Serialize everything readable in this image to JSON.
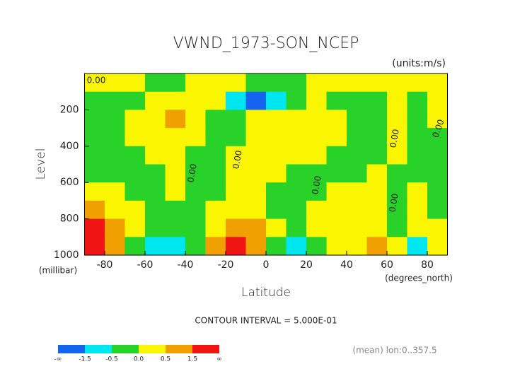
{
  "chart_data": {
    "type": "contour",
    "title": "VWND_1973-SON_NCEP",
    "units": "(units:m/s)",
    "y_label": "Level",
    "y_unit": "(millibar)",
    "x_label": "Latitude",
    "x_unit": "(degrees_north)",
    "contour_interval": "CONTOUR INTERVAL = 5.000E-01",
    "contour_label": "0.00",
    "footnote": "(mean) lon:0..357.5",
    "xlim": [
      -90,
      90
    ],
    "xticks": [
      -80,
      -60,
      -40,
      -20,
      0,
      20,
      40,
      60,
      80
    ],
    "ylim": [
      1000,
      0
    ],
    "yticks": [
      200,
      400,
      600,
      800,
      1000
    ],
    "x": [
      -85,
      -75,
      -65,
      -55,
      -45,
      -35,
      -25,
      -15,
      -5,
      5,
      15,
      25,
      35,
      45,
      55,
      65,
      75,
      85
    ],
    "levels": [
      50,
      150,
      250,
      350,
      450,
      550,
      650,
      750,
      850,
      950
    ],
    "values": [
      [
        0.2,
        0.2,
        0.2,
        -0.2,
        -0.2,
        0.2,
        0.2,
        0.2,
        -0.3,
        -0.3,
        -0.2,
        0.2,
        0.2,
        0.2,
        0.2,
        0.2,
        0.2,
        0.2
      ],
      [
        -0.2,
        -0.2,
        -0.2,
        0.2,
        0.2,
        0.2,
        0.2,
        -0.8,
        -1.7,
        -1.0,
        -0.3,
        0.2,
        -0.2,
        -0.2,
        -0.2,
        0.2,
        -0.2,
        0.2
      ],
      [
        -0.2,
        -0.2,
        0.2,
        0.2,
        0.7,
        0.2,
        -0.2,
        -0.3,
        0.2,
        0.2,
        0.2,
        0.2,
        0.2,
        -0.2,
        -0.2,
        0.2,
        -0.2,
        0.2
      ],
      [
        -0.2,
        -0.2,
        0.2,
        0.2,
        0.2,
        0.2,
        -0.2,
        -0.2,
        0.2,
        0.2,
        0.2,
        0.2,
        0.2,
        -0.2,
        -0.2,
        0.2,
        -0.2,
        -0.2
      ],
      [
        -0.2,
        -0.2,
        -0.2,
        0.2,
        0.2,
        -0.2,
        -0.2,
        0.2,
        0.2,
        0.2,
        0.2,
        0.2,
        -0.2,
        -0.2,
        -0.2,
        0.2,
        -0.2,
        -0.2
      ],
      [
        -0.2,
        -0.2,
        -0.2,
        -0.2,
        0.2,
        -0.2,
        -0.2,
        0.2,
        0.2,
        0.2,
        -0.2,
        -0.2,
        -0.2,
        -0.2,
        0.2,
        -0.2,
        -0.2,
        -0.2
      ],
      [
        0.2,
        0.2,
        -0.2,
        -0.2,
        0.2,
        -0.2,
        -0.2,
        0.2,
        0.2,
        -0.2,
        -0.2,
        -0.2,
        0.2,
        0.2,
        0.2,
        -0.2,
        0.2,
        -0.2
      ],
      [
        0.7,
        0.2,
        0.2,
        -0.2,
        -0.2,
        -0.2,
        0.2,
        0.2,
        0.2,
        -0.2,
        -0.2,
        0.2,
        0.2,
        0.2,
        0.2,
        -0.2,
        0.2,
        -0.2
      ],
      [
        2.0,
        0.7,
        0.2,
        -0.2,
        -0.2,
        -0.2,
        0.2,
        0.7,
        0.7,
        0.2,
        -0.2,
        0.2,
        0.2,
        0.2,
        0.2,
        -0.2,
        0.2,
        0.2
      ],
      [
        2.5,
        0.7,
        -0.2,
        -1.0,
        -0.6,
        -0.2,
        0.7,
        2.0,
        0.8,
        -0.2,
        -1.0,
        -0.3,
        0.2,
        0.2,
        0.8,
        0.2,
        -0.6,
        0.2
      ]
    ],
    "colorbar": {
      "colors": [
        "#1464f0",
        "#00e6f0",
        "#28d228",
        "#faf500",
        "#f0a000",
        "#f01414"
      ],
      "ticks": [
        "-∞",
        -1.5,
        -0.5,
        {
          "value": 0,
          "label": "0.0"
        },
        0.5,
        1.5,
        "∞"
      ]
    }
  }
}
